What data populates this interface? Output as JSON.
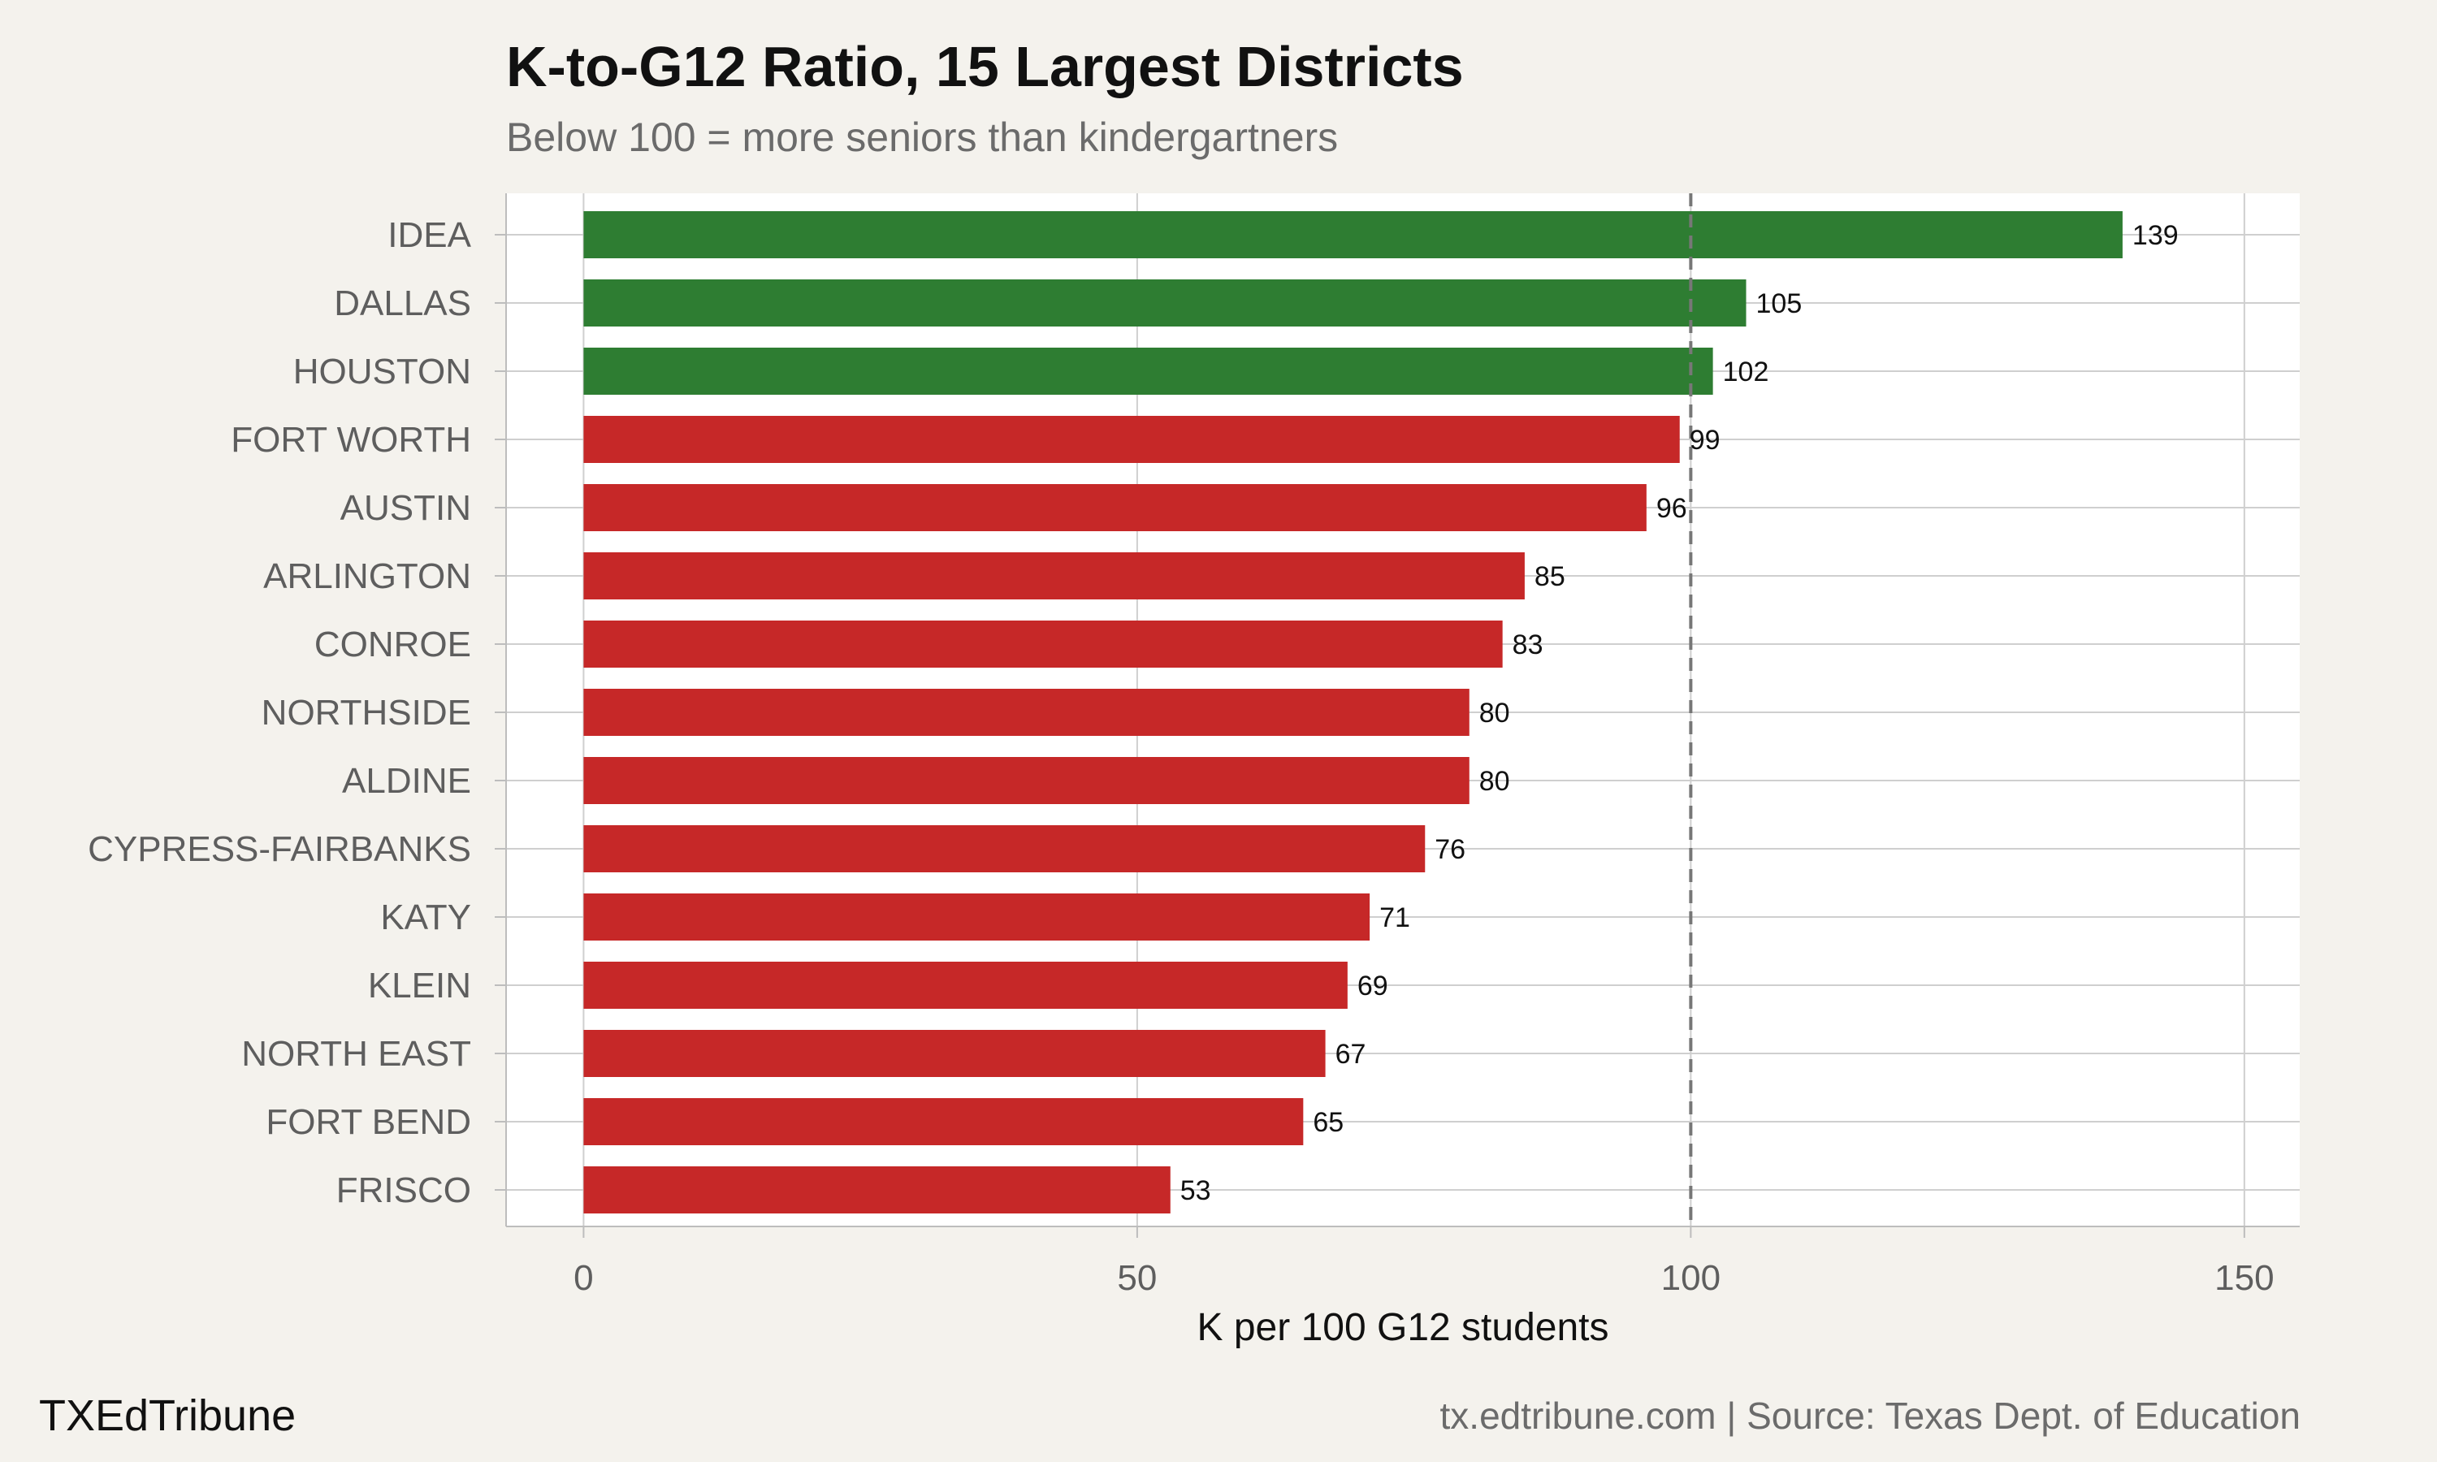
{
  "title": "K-to-G12 Ratio, 15 Largest Districts",
  "subtitle": "Below 100 = more seniors than kindergartners",
  "branding": "TXEdTribune",
  "source": "tx.edtribune.com | Source: Texas Dept. of Education",
  "colors": {
    "above": "#2e7d32",
    "below": "#c62828",
    "background": "#f4f2ed",
    "panel": "#ffffff",
    "reference_line": "#777777"
  },
  "chart_data": {
    "type": "bar",
    "orientation": "horizontal",
    "title": "K-to-G12 Ratio, 15 Largest Districts",
    "subtitle": "Below 100 = more seniors than kindergartners",
    "xlabel": "K per 100 G12 students",
    "ylabel": "",
    "categories": [
      "IDEA",
      "DALLAS",
      "HOUSTON",
      "FORT WORTH",
      "AUSTIN",
      "ARLINGTON",
      "CONROE",
      "NORTHSIDE",
      "ALDINE",
      "CYPRESS-FAIRBANKS",
      "KATY",
      "KLEIN",
      "NORTH EAST",
      "FORT BEND",
      "FRISCO"
    ],
    "values": [
      139,
      105,
      102,
      99,
      96,
      85,
      83,
      80,
      80,
      76,
      71,
      69,
      67,
      65,
      53
    ],
    "data_labels": [
      "139",
      "105",
      "102",
      "99",
      "96",
      "85",
      "83",
      "80",
      "80",
      "76",
      "71",
      "69",
      "67",
      "65",
      "53"
    ],
    "xlim": [
      -7,
      155
    ],
    "xticks": [
      0,
      50,
      100,
      150
    ],
    "xtick_labels": [
      "0",
      "50",
      "100",
      "150"
    ],
    "reference_line": 100,
    "grid": true,
    "legend": "none"
  }
}
